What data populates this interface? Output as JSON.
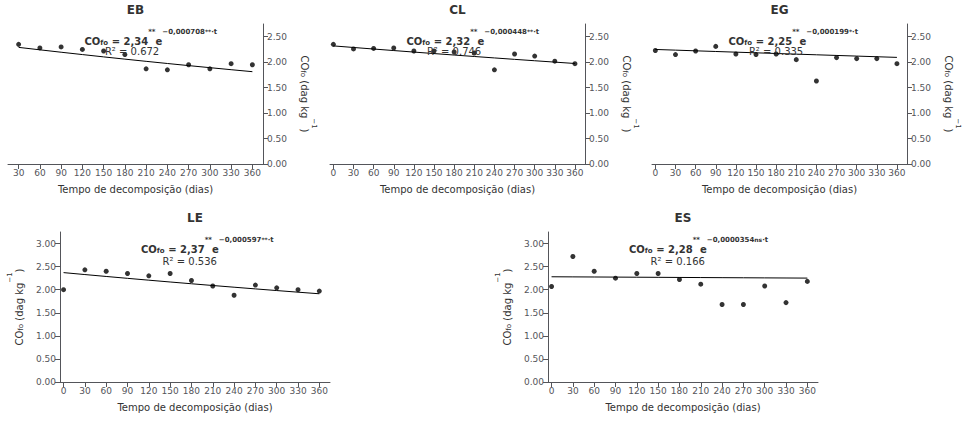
{
  "chart_data": [
    {
      "type": "scatter",
      "title": "EB",
      "x": [
        30,
        60,
        90,
        120,
        150,
        180,
        210,
        240,
        270,
        300,
        330,
        360
      ],
      "series": [
        {
          "type": "scatter",
          "color": "#000000",
          "marker": "circle",
          "values": [
            2.35,
            2.28,
            2.3,
            2.25,
            2.22,
            2.15,
            1.87,
            1.85,
            1.95,
            1.87,
            1.97,
            1.95
          ]
        },
        {
          "type": "line",
          "color": "#000000",
          "line_style": "solid",
          "values": [
            2.2908,
            2.2427,
            2.1955,
            2.1494,
            2.1042,
            2.06,
            2.0167,
            1.9743,
            1.9328,
            1.8922,
            1.8525,
            1.8135
          ]
        }
      ],
      "annotations": [
        [
          "CO",
          "fo",
          " = 2,34",
          "**",
          "e",
          "−0,000708",
          "**",
          "·t"
        ],
        "R² = 0.672"
      ],
      "xlabel": "Tempo de decomposição (dias)",
      "ylabel": [
        "CO",
        "fo",
        " (dag kg",
        "−1",
        ")"
      ],
      "xlim": [
        15,
        375
      ],
      "ylim": [
        0,
        2.75
      ],
      "xticks": [
        30,
        60,
        90,
        120,
        150,
        180,
        210,
        240,
        270,
        300,
        330,
        360
      ],
      "yticks": [
        {
          "value": 0,
          "label": "0.00"
        },
        {
          "value": 0.5,
          "label": "0.50"
        },
        {
          "value": 1,
          "label": "1.00"
        },
        {
          "value": 1.5,
          "label": "1.50"
        },
        {
          "value": 2,
          "label": "2.00"
        },
        {
          "value": 2.5,
          "label": "2.50"
        }
      ],
      "grid": false
    },
    {
      "type": "scatter",
      "title": "CL",
      "x": [
        0,
        30,
        60,
        90,
        120,
        150,
        180,
        210,
        240,
        270,
        300,
        330,
        360
      ],
      "series": [
        {
          "type": "scatter",
          "color": "#000000",
          "marker": "circle",
          "values": [
            2.35,
            2.26,
            2.27,
            2.28,
            2.22,
            2.22,
            2.2,
            2.18,
            1.85,
            2.16,
            2.12,
            2.02,
            1.97
          ]
        },
        {
          "type": "line",
          "color": "#000000",
          "line_style": "solid",
          "values": [
            2.32,
            2.289,
            2.2585,
            2.2283,
            2.1986,
            2.1692,
            2.1403,
            2.1117,
            2.0835,
            2.0557,
            2.0282,
            2.0012,
            1.9744
          ]
        }
      ],
      "annotations": [
        [
          "CO",
          "fo",
          " = 2,32",
          "**",
          "e",
          "−0,000448",
          "**",
          "·t"
        ],
        "R² = 0.746"
      ],
      "xlabel": "Tempo de decomposição (dias)",
      "ylabel": [
        "CO",
        "fo",
        " (dag kg",
        "−1",
        ")"
      ],
      "xlim": [
        -5,
        375
      ],
      "ylim": [
        0,
        2.75
      ],
      "xticks": [
        0,
        30,
        60,
        90,
        120,
        150,
        180,
        210,
        240,
        270,
        300,
        330,
        360
      ],
      "yticks": [
        {
          "value": 0,
          "label": "0.00"
        },
        {
          "value": 0.5,
          "label": "0.50"
        },
        {
          "value": 1,
          "label": "1.00"
        },
        {
          "value": 1.5,
          "label": "1.50"
        },
        {
          "value": 2,
          "label": "2.00"
        },
        {
          "value": 2.5,
          "label": "2.50"
        }
      ],
      "grid": false
    },
    {
      "type": "scatter",
      "title": "EG",
      "x": [
        0,
        30,
        60,
        90,
        120,
        150,
        180,
        210,
        240,
        270,
        300,
        330,
        360
      ],
      "series": [
        {
          "type": "scatter",
          "color": "#000000",
          "marker": "circle",
          "values": [
            2.23,
            2.15,
            2.22,
            2.31,
            2.16,
            2.15,
            2.16,
            2.05,
            1.63,
            2.09,
            2.07,
            2.07,
            1.97
          ]
        },
        {
          "type": "line",
          "color": "#000000",
          "line_style": "solid",
          "values": [
            2.25,
            2.2366,
            2.2233,
            2.2101,
            2.1969,
            2.1838,
            2.1708,
            2.1579,
            2.1451,
            2.1323,
            2.1196,
            2.107,
            2.0944
          ]
        }
      ],
      "annotations": [
        [
          "CO",
          "fo",
          " = 2,25",
          "**",
          "e",
          "−0,000199",
          "*",
          "·t"
        ],
        "R² = 0.335"
      ],
      "xlabel": "Tempo de decomposição (dias)",
      "ylabel": [
        "CO",
        "fo",
        " (dag kg",
        "−1",
        ")"
      ],
      "xlim": [
        -5,
        375
      ],
      "ylim": [
        0,
        2.75
      ],
      "xticks": [
        0,
        30,
        60,
        90,
        120,
        150,
        180,
        210,
        240,
        270,
        300,
        330,
        360
      ],
      "yticks": [
        {
          "value": 0,
          "label": "0.00"
        },
        {
          "value": 0.5,
          "label": "0.50"
        },
        {
          "value": 1,
          "label": "1.00"
        },
        {
          "value": 1.5,
          "label": "1.50"
        },
        {
          "value": 2,
          "label": "2.00"
        },
        {
          "value": 2.5,
          "label": "2.50"
        }
      ],
      "grid": false
    },
    {
      "type": "scatter",
      "title": "LE",
      "x": [
        0,
        30,
        60,
        90,
        120,
        150,
        180,
        210,
        240,
        270,
        300,
        330,
        360
      ],
      "series": [
        {
          "type": "scatter",
          "color": "#000000",
          "marker": "circle",
          "values": [
            2.0,
            2.43,
            2.4,
            2.35,
            2.3,
            2.35,
            2.2,
            2.08,
            1.88,
            2.1,
            2.04,
            2.0,
            1.97
          ]
        },
        {
          "type": "line",
          "color": "#000000",
          "line_style": "solid",
          "values": [
            2.37,
            2.3279,
            2.2866,
            2.246,
            2.2062,
            2.167,
            2.1285,
            2.0907,
            2.0536,
            2.0172,
            1.9814,
            1.9462,
            1.9117
          ]
        }
      ],
      "annotations": [
        [
          "CO",
          "fo",
          " = 2,37",
          "**",
          "e",
          "−0,000597",
          "**",
          "·t"
        ],
        "R² = 0.536"
      ],
      "xlabel": "Tempo de decomposição (dias)",
      "ylabel": [
        "CO",
        "fo",
        " (dag kg",
        "−1",
        ")"
      ],
      "xlim": [
        -5,
        375
      ],
      "ylim": [
        0,
        3.25
      ],
      "xticks": [
        0,
        30,
        60,
        90,
        120,
        150,
        180,
        210,
        240,
        270,
        300,
        330,
        360
      ],
      "yticks": [
        {
          "value": 0,
          "label": "0.00"
        },
        {
          "value": 0.5,
          "label": "0.50"
        },
        {
          "value": 1,
          "label": "1.00"
        },
        {
          "value": 1.5,
          "label": "1.50"
        },
        {
          "value": 2,
          "label": "2.00"
        },
        {
          "value": 2.5,
          "label": "2.50"
        },
        {
          "value": 3,
          "label": "3.00"
        }
      ],
      "grid": false
    },
    {
      "type": "scatter",
      "title": "ES",
      "x": [
        0,
        30,
        60,
        90,
        120,
        150,
        180,
        210,
        240,
        270,
        300,
        330,
        360
      ],
      "series": [
        {
          "type": "scatter",
          "color": "#000000",
          "marker": "circle",
          "values": [
            2.07,
            2.72,
            2.4,
            2.25,
            2.35,
            2.35,
            2.22,
            2.12,
            1.68,
            1.68,
            2.08,
            1.72,
            2.18
          ]
        },
        {
          "type": "line",
          "color": "#000000",
          "line_style": "solid",
          "values": [
            2.28,
            2.2776,
            2.2752,
            2.2727,
            2.2703,
            2.2679,
            2.2655,
            2.2631,
            2.2607,
            2.2583,
            2.2559,
            2.2535,
            2.2511
          ]
        }
      ],
      "annotations": [
        [
          "CO",
          "fo",
          " = 2,28",
          "**",
          "e",
          "−0,0000354",
          "ns",
          "·t"
        ],
        "R² = 0.166"
      ],
      "xlabel": "Tempo de decomposição (dias)",
      "ylabel": [
        "CO",
        "fo",
        " (dag kg",
        "−1",
        ")"
      ],
      "xlim": [
        -5,
        375
      ],
      "ylim": [
        0,
        3.25
      ],
      "xticks": [
        0,
        30,
        60,
        90,
        120,
        150,
        180,
        210,
        240,
        270,
        300,
        330,
        360
      ],
      "yticks": [
        {
          "value": 0,
          "label": "0.00"
        },
        {
          "value": 0.5,
          "label": "0.50"
        },
        {
          "value": 1,
          "label": "1.00"
        },
        {
          "value": 1.5,
          "label": "1.50"
        },
        {
          "value": 2,
          "label": "2.00"
        },
        {
          "value": 2.5,
          "label": "2.50"
        },
        {
          "value": 3,
          "label": "3.00"
        }
      ],
      "grid": false
    }
  ]
}
